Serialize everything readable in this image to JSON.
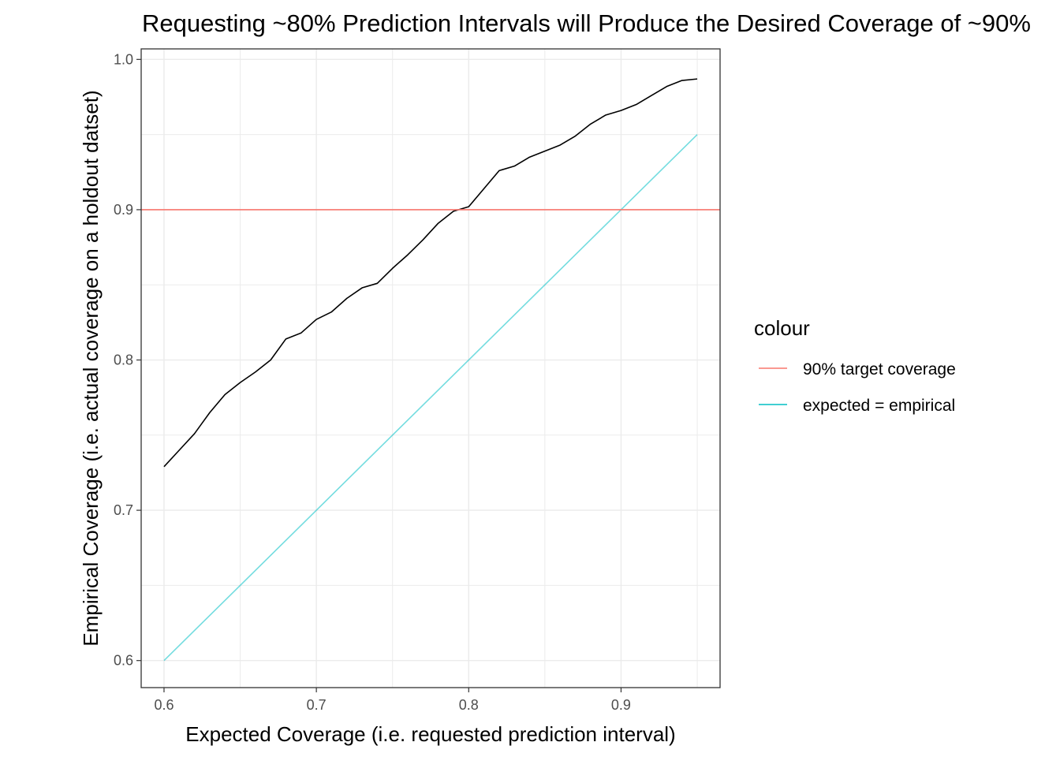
{
  "chart_data": {
    "type": "line",
    "title": "Requesting ~80% Prediction Intervals will Produce the Desired Coverage of ~90%",
    "xlabel": "Expected Coverage (i.e. requested prediction interval)",
    "ylabel": "Empirical Coverage (i.e. actual coverage on a holdout datset)",
    "xlim": [
      0.585,
      0.965
    ],
    "ylim": [
      0.582,
      1.007
    ],
    "xticks": [
      0.6,
      0.7,
      0.8,
      0.9
    ],
    "xtick_labels": [
      "0.6",
      "0.7",
      "0.8",
      "0.9"
    ],
    "yticks": [
      0.6,
      0.7,
      0.8,
      0.9,
      1.0
    ],
    "ytick_labels": [
      "0.6",
      "0.7",
      "0.8",
      "0.9",
      "1.0"
    ],
    "grid": true,
    "legend": {
      "title": "colour",
      "position": "right",
      "entries": [
        {
          "label": "90% target coverage",
          "color": "#F8766D"
        },
        {
          "label": "expected = empirical",
          "color": "#00BFC4"
        }
      ]
    },
    "series": [
      {
        "color": "#000000",
        "x": [
          0.6,
          0.61,
          0.62,
          0.63,
          0.64,
          0.65,
          0.66,
          0.67,
          0.68,
          0.69,
          0.7,
          0.71,
          0.72,
          0.73,
          0.74,
          0.75,
          0.76,
          0.77,
          0.78,
          0.79,
          0.8,
          0.81,
          0.82,
          0.83,
          0.84,
          0.85,
          0.86,
          0.87,
          0.88,
          0.89,
          0.9,
          0.91,
          0.92,
          0.93,
          0.94,
          0.95
        ],
        "y": [
          0.729,
          0.74,
          0.751,
          0.765,
          0.777,
          0.785,
          0.792,
          0.8,
          0.814,
          0.818,
          0.827,
          0.832,
          0.841,
          0.848,
          0.851,
          0.861,
          0.87,
          0.88,
          0.891,
          0.899,
          0.902,
          0.914,
          0.926,
          0.929,
          0.935,
          0.939,
          0.943,
          0.949,
          0.957,
          0.963,
          0.966,
          0.97,
          0.976,
          0.982,
          0.986,
          0.987
        ]
      },
      {
        "name": "expected = empirical",
        "color": "#00BFC4",
        "x": [
          0.6,
          0.95
        ],
        "y": [
          0.6,
          0.95
        ]
      },
      {
        "name": "90% target coverage",
        "color": "#F8766D",
        "hline": 0.9
      }
    ]
  }
}
